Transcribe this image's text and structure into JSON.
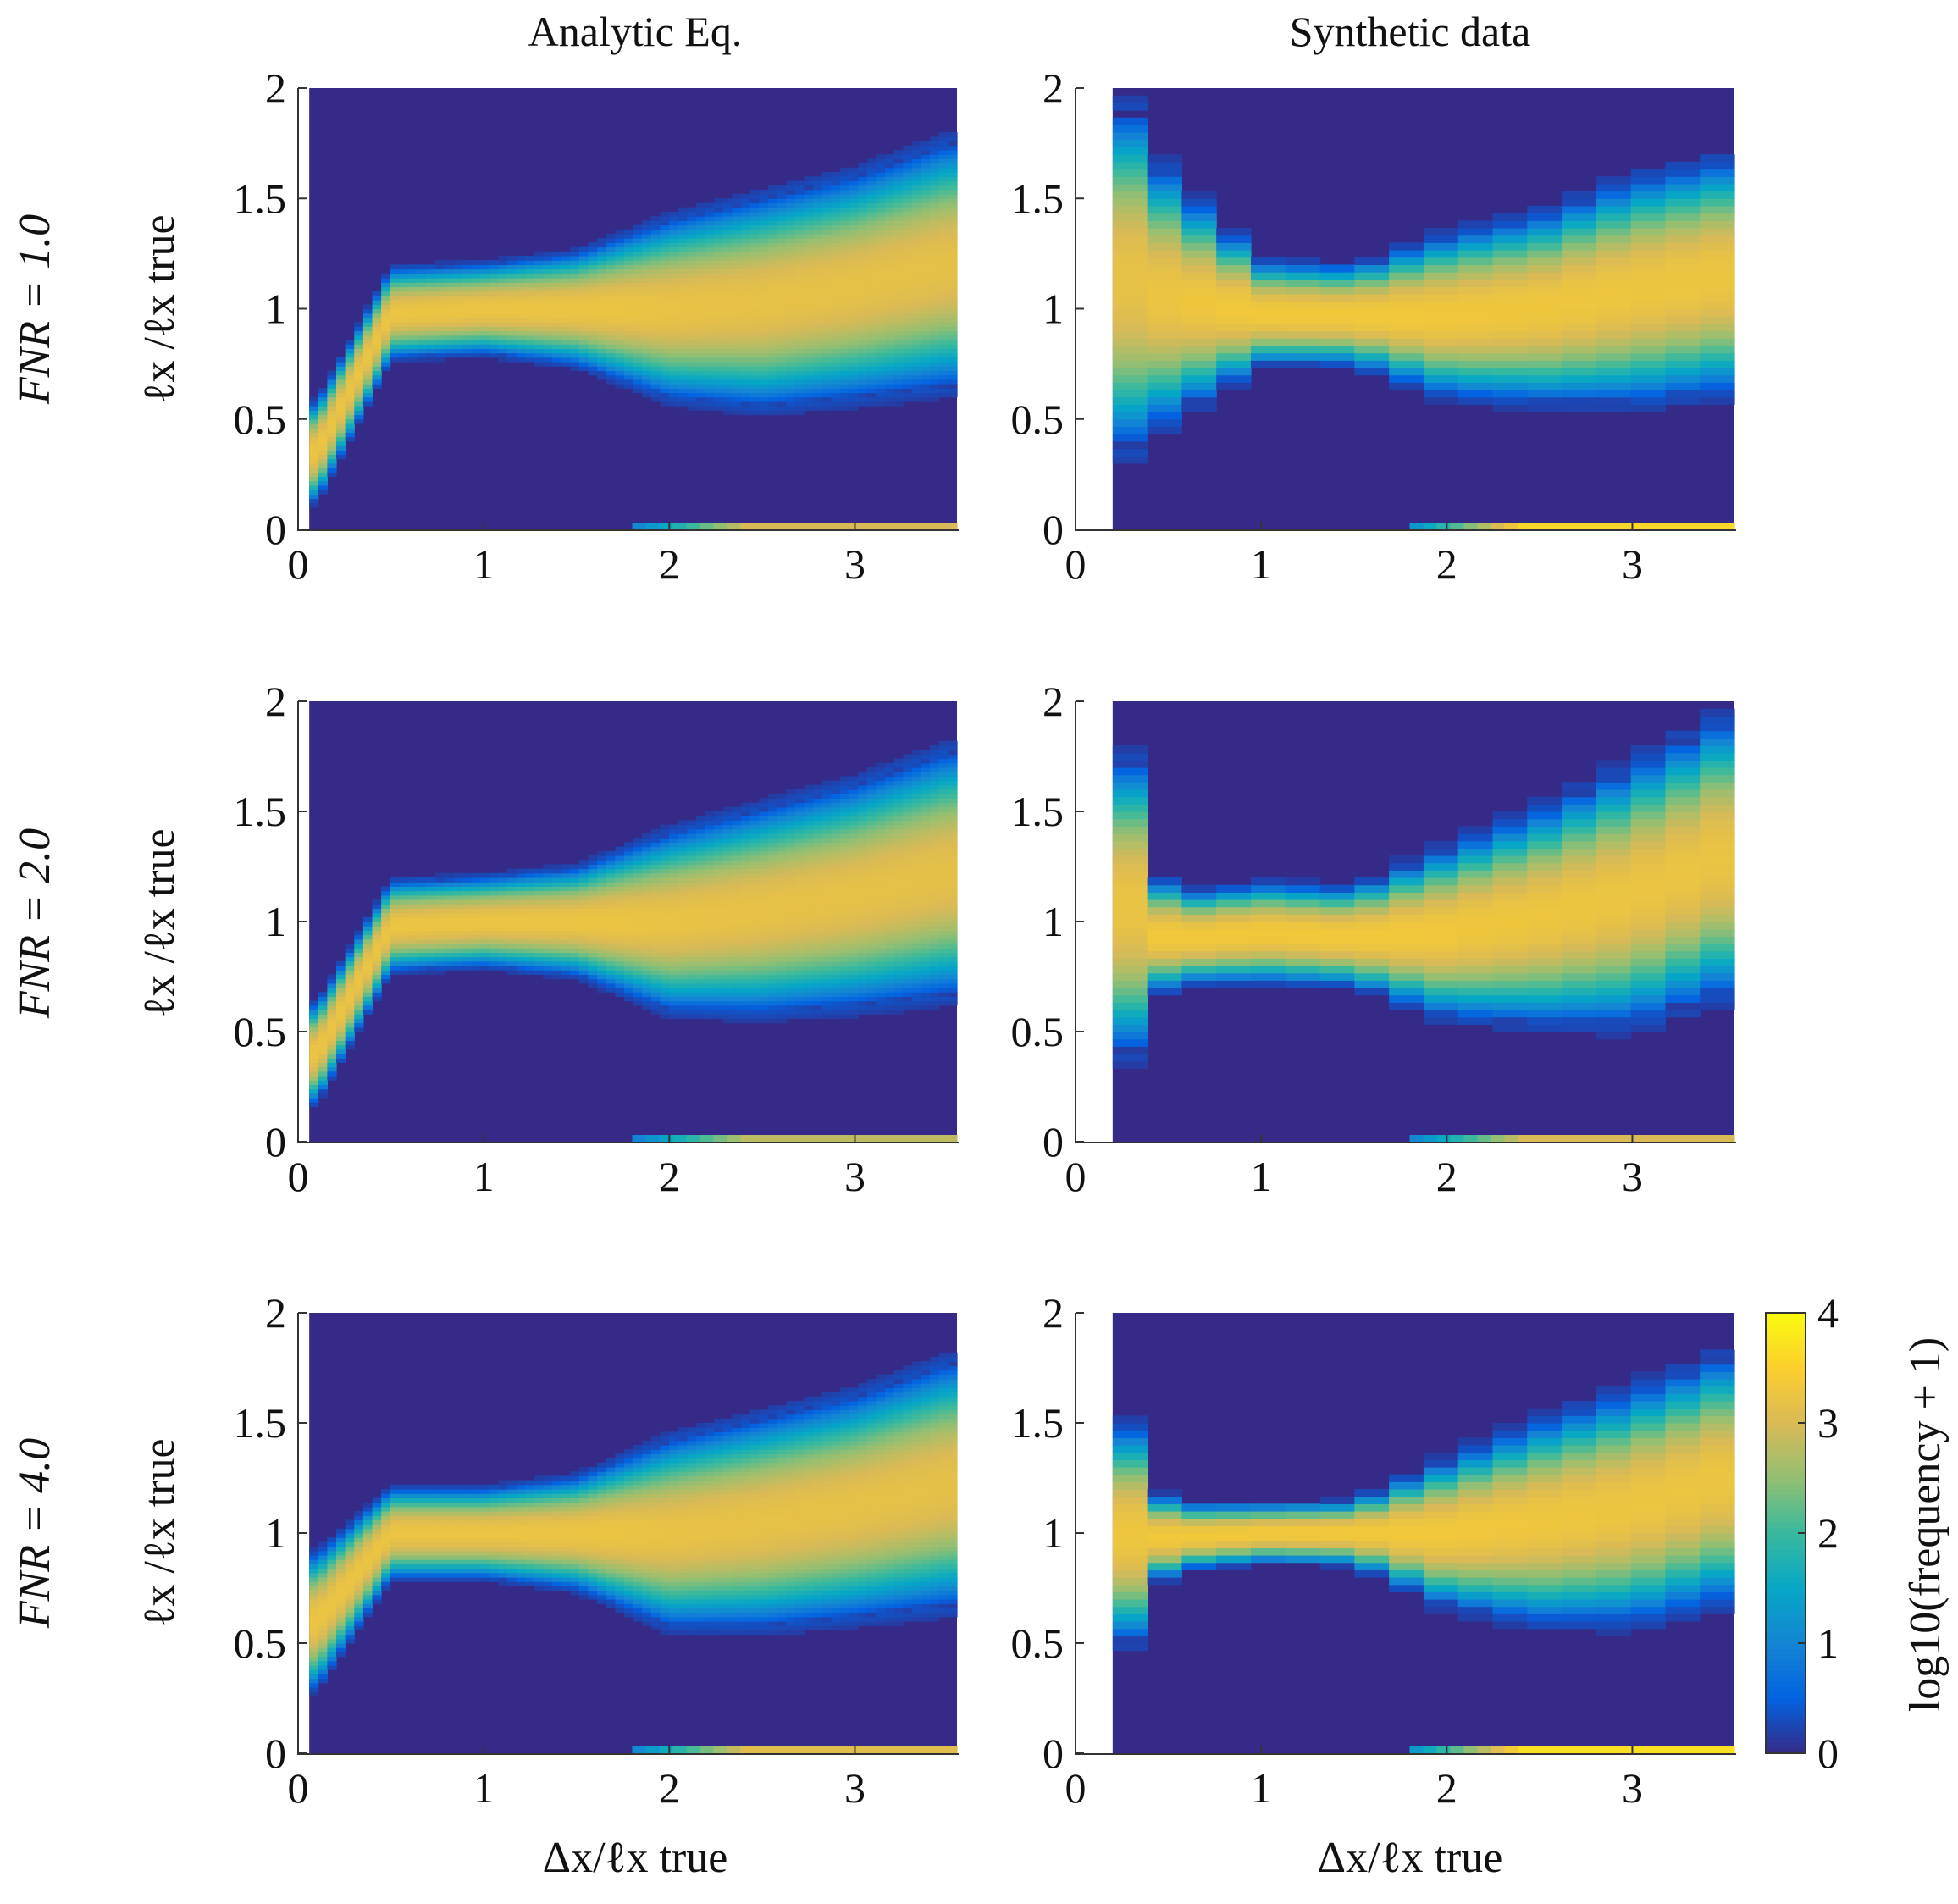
{
  "figure": {
    "column_titles": [
      "Analytic Eq.",
      "Synthetic data"
    ],
    "row_labels": [
      "FNR = 1.0",
      "FNR = 2.0",
      "FNR = 4.0"
    ],
    "ylabel": "ℓx /ℓx true",
    "xlabel": "Δx/ℓx true",
    "colorbar": {
      "label": "log10(frequency + 1)",
      "ticks": [
        "0",
        "1",
        "2",
        "3",
        "4"
      ],
      "range": [
        0,
        4
      ],
      "colormap": [
        "#352a87",
        "#0363e1",
        "#1485d4",
        "#06a7c6",
        "#38b99e",
        "#92bf73",
        "#d9ba56",
        "#fcce2e",
        "#f9fb0e"
      ]
    }
  },
  "chart_data": [
    {
      "type": "heatmap",
      "panel": "Analytic Eq., FNR = 1.0",
      "method": "analytic",
      "fnr": 1.0,
      "xlim": [
        0,
        3.55
      ],
      "ylim": [
        0,
        2
      ],
      "xticks": [
        "0",
        "1",
        "2",
        "3"
      ],
      "yticks": [
        "0",
        "0.5",
        "1",
        "1.5",
        "2"
      ],
      "band_center": [
        [
          0.1,
          0.35
        ],
        [
          0.5,
          0.98
        ],
        [
          1.0,
          1.0
        ],
        [
          1.5,
          1.0
        ],
        [
          2.0,
          1.0
        ],
        [
          2.5,
          1.03
        ],
        [
          3.0,
          1.1
        ],
        [
          3.5,
          1.2
        ]
      ],
      "band_halfwidth": [
        [
          0.1,
          0.22
        ],
        [
          0.5,
          0.2
        ],
        [
          1.0,
          0.2
        ],
        [
          1.5,
          0.25
        ],
        [
          2.0,
          0.4
        ],
        [
          2.5,
          0.47
        ],
        [
          3.0,
          0.5
        ],
        [
          3.5,
          0.55
        ]
      ],
      "zero_row_intensity": 3.0
    },
    {
      "type": "heatmap",
      "panel": "Synthetic data, FNR = 1.0",
      "method": "synthetic",
      "fnr": 1.0,
      "xlim": [
        0,
        3.55
      ],
      "ylim": [
        0,
        2
      ],
      "xticks": [
        "0",
        "1",
        "2",
        "3"
      ],
      "yticks": [
        "0",
        "0.5",
        "1",
        "1.5",
        "2"
      ],
      "band_center": [
        [
          0.25,
          1.15
        ],
        [
          0.5,
          1.05
        ],
        [
          1.0,
          0.98
        ],
        [
          1.5,
          0.97
        ],
        [
          2.0,
          0.97
        ],
        [
          2.5,
          1.0
        ],
        [
          3.0,
          1.08
        ],
        [
          3.5,
          1.15
        ]
      ],
      "band_halfwidth": [
        [
          0.25,
          0.8
        ],
        [
          0.5,
          0.55
        ],
        [
          1.0,
          0.23
        ],
        [
          1.5,
          0.22
        ],
        [
          2.0,
          0.36
        ],
        [
          2.5,
          0.42
        ],
        [
          3.0,
          0.5
        ],
        [
          3.5,
          0.52
        ]
      ],
      "zero_row_intensity": 3.6
    },
    {
      "type": "heatmap",
      "panel": "Analytic Eq., FNR = 2.0",
      "method": "analytic",
      "fnr": 2.0,
      "xlim": [
        0,
        3.55
      ],
      "ylim": [
        0,
        2
      ],
      "xticks": [
        "0",
        "1",
        "2",
        "3"
      ],
      "yticks": [
        "0",
        "0.5",
        "1",
        "1.5",
        "2"
      ],
      "band_center": [
        [
          0.1,
          0.4
        ],
        [
          0.5,
          0.98
        ],
        [
          1.0,
          1.0
        ],
        [
          1.5,
          1.0
        ],
        [
          2.0,
          1.0
        ],
        [
          2.5,
          1.05
        ],
        [
          3.0,
          1.12
        ],
        [
          3.5,
          1.22
        ]
      ],
      "band_halfwidth": [
        [
          0.1,
          0.22
        ],
        [
          0.5,
          0.2
        ],
        [
          1.0,
          0.2
        ],
        [
          1.5,
          0.24
        ],
        [
          2.0,
          0.4
        ],
        [
          2.5,
          0.46
        ],
        [
          3.0,
          0.5
        ],
        [
          3.5,
          0.55
        ]
      ],
      "zero_row_intensity": 2.8
    },
    {
      "type": "heatmap",
      "panel": "Synthetic data, FNR = 2.0",
      "method": "synthetic",
      "fnr": 2.0,
      "xlim": [
        0,
        3.55
      ],
      "ylim": [
        0,
        2
      ],
      "xticks": [
        "0",
        "1",
        "2",
        "3"
      ],
      "yticks": [
        "0",
        "0.5",
        "1",
        "1.5",
        "2"
      ],
      "band_center": [
        [
          0.25,
          1.1
        ],
        [
          0.5,
          0.92
        ],
        [
          1.0,
          0.95
        ],
        [
          1.5,
          0.93
        ],
        [
          2.0,
          0.95
        ],
        [
          2.5,
          1.02
        ],
        [
          3.0,
          1.12
        ],
        [
          3.5,
          1.3
        ]
      ],
      "band_halfwidth": [
        [
          0.25,
          0.75
        ],
        [
          0.5,
          0.2
        ],
        [
          1.0,
          0.22
        ],
        [
          1.5,
          0.22
        ],
        [
          2.0,
          0.38
        ],
        [
          2.5,
          0.48
        ],
        [
          3.0,
          0.58
        ],
        [
          3.5,
          0.62
        ]
      ],
      "zero_row_intensity": 3.0
    },
    {
      "type": "heatmap",
      "panel": "Analytic Eq., FNR = 4.0",
      "method": "analytic",
      "fnr": 4.0,
      "xlim": [
        0,
        3.55
      ],
      "ylim": [
        0,
        2
      ],
      "xticks": [
        "0",
        "1",
        "2",
        "3"
      ],
      "yticks": [
        "0",
        "0.5",
        "1",
        "1.5",
        "2"
      ],
      "band_center": [
        [
          0.1,
          0.6
        ],
        [
          0.5,
          1.0
        ],
        [
          1.0,
          1.0
        ],
        [
          1.5,
          1.0
        ],
        [
          2.0,
          1.0
        ],
        [
          2.5,
          1.05
        ],
        [
          3.0,
          1.12
        ],
        [
          3.5,
          1.22
        ]
      ],
      "band_halfwidth": [
        [
          0.1,
          0.3
        ],
        [
          0.5,
          0.2
        ],
        [
          1.0,
          0.2
        ],
        [
          1.5,
          0.25
        ],
        [
          2.0,
          0.42
        ],
        [
          2.5,
          0.47
        ],
        [
          3.0,
          0.5
        ],
        [
          3.5,
          0.55
        ]
      ],
      "zero_row_intensity": 3.1
    },
    {
      "type": "heatmap",
      "panel": "Synthetic data, FNR = 4.0",
      "method": "synthetic",
      "fnr": 4.0,
      "xlim": [
        0,
        3.55
      ],
      "ylim": [
        0,
        2
      ],
      "xticks": [
        "0",
        "1",
        "2",
        "3"
      ],
      "yticks": [
        "0",
        "0.5",
        "1",
        "1.5",
        "2"
      ],
      "band_center": [
        [
          0.25,
          1.0
        ],
        [
          0.5,
          0.98
        ],
        [
          1.0,
          1.0
        ],
        [
          1.5,
          1.0
        ],
        [
          2.0,
          1.0
        ],
        [
          2.5,
          1.05
        ],
        [
          3.0,
          1.12
        ],
        [
          3.5,
          1.25
        ]
      ],
      "band_halfwidth": [
        [
          0.25,
          0.55
        ],
        [
          0.5,
          0.15
        ],
        [
          1.0,
          0.13
        ],
        [
          1.5,
          0.14
        ],
        [
          2.0,
          0.33
        ],
        [
          2.5,
          0.45
        ],
        [
          3.0,
          0.52
        ],
        [
          3.5,
          0.55
        ]
      ],
      "zero_row_intensity": 3.7
    }
  ]
}
